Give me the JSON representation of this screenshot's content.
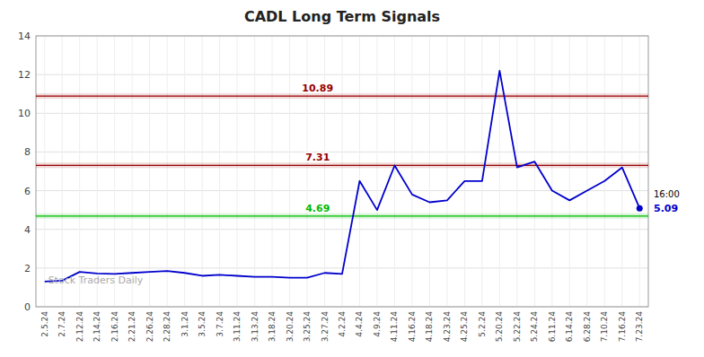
{
  "chart_data": {
    "type": "line",
    "title": "CADL Long Term Signals",
    "categories": [
      "2.5.24",
      "2.7.24",
      "2.12.24",
      "2.14.24",
      "2.16.24",
      "2.21.24",
      "2.26.24",
      "2.28.24",
      "3.1.24",
      "3.5.24",
      "3.7.24",
      "3.11.24",
      "3.13.24",
      "3.18.24",
      "3.20.24",
      "3.25.24",
      "3.27.24",
      "4.2.24",
      "4.4.24",
      "4.9.24",
      "4.11.24",
      "4.16.24",
      "4.18.24",
      "4.23.24",
      "4.25.24",
      "5.2.24",
      "5.20.24",
      "5.22.24",
      "5.24.24",
      "6.11.24",
      "6.14.24",
      "6.28.24",
      "7.10.24",
      "7.16.24",
      "7.23.24"
    ],
    "values": [
      1.3,
      1.35,
      1.8,
      1.72,
      1.7,
      1.75,
      1.8,
      1.85,
      1.75,
      1.6,
      1.65,
      1.6,
      1.55,
      1.55,
      1.5,
      1.5,
      1.75,
      1.7,
      6.5,
      5.0,
      7.3,
      5.8,
      5.4,
      5.5,
      6.5,
      6.5,
      12.2,
      7.2,
      7.5,
      6.0,
      5.5,
      6.0,
      6.5,
      7.2,
      5.09
    ],
    "color": "#0000cc",
    "hlines": [
      {
        "value": 4.69,
        "color": "#00bb00"
      },
      {
        "value": 7.31,
        "color": "#990000"
      },
      {
        "value": 10.89,
        "color": "#990000"
      }
    ],
    "annotations": [
      "16:00",
      "Stock Traders Daily"
    ],
    "ylim": [
      0,
      14
    ],
    "yticks": [
      0,
      2,
      4,
      6,
      8,
      10,
      12,
      14
    ],
    "grid": true
  }
}
